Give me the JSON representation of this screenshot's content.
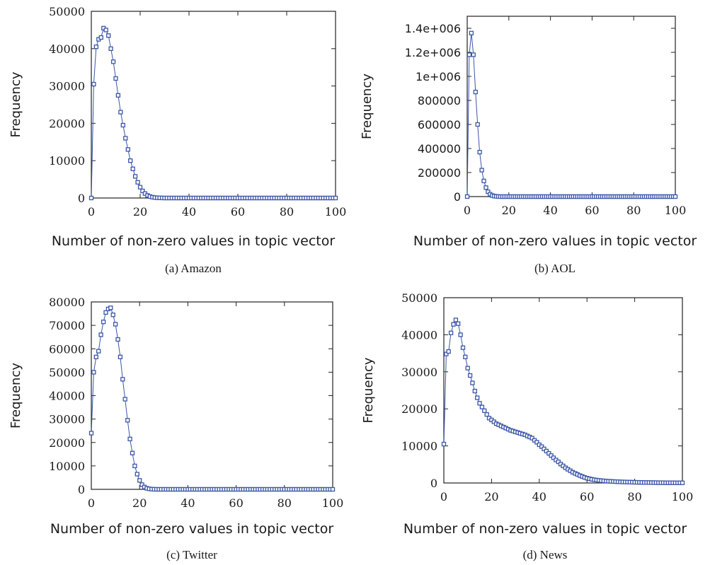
{
  "chart_data": [
    {
      "type": "scatter",
      "caption": "(a)  Amazon",
      "xlabel": "Number of non-zero values in topic vector",
      "ylabel": "Frequency",
      "xlim": [
        0,
        100
      ],
      "ylim": [
        0,
        50000
      ],
      "xticks": [
        "0",
        "20",
        "40",
        "60",
        "80",
        "100"
      ],
      "yticks": [
        "0",
        "10000",
        "20000",
        "30000",
        "40000",
        "50000"
      ],
      "x": [
        0,
        1,
        2,
        3,
        4,
        5,
        6,
        7,
        8,
        9,
        10,
        11,
        12,
        13,
        14,
        15,
        16,
        17,
        18,
        19,
        20,
        21,
        22,
        23,
        24,
        25,
        26,
        27,
        28,
        29,
        30,
        31,
        32,
        33,
        34,
        35,
        36,
        37,
        38,
        39,
        40,
        41,
        42,
        43,
        44,
        45,
        46,
        47,
        48,
        49,
        50,
        51,
        52,
        53,
        54,
        55,
        56,
        57,
        58,
        59,
        60,
        61,
        62,
        63,
        64,
        65,
        66,
        67,
        68,
        69,
        70,
        71,
        72,
        73,
        74,
        75,
        76,
        77,
        78,
        79,
        80,
        81,
        82,
        83,
        84,
        85,
        86,
        87,
        88,
        89,
        90,
        91,
        92,
        93,
        94,
        95,
        96,
        97,
        98,
        99,
        100
      ],
      "y": [
        0,
        30500,
        40500,
        42500,
        43000,
        45500,
        45000,
        43500,
        40000,
        36500,
        32000,
        27500,
        23000,
        19500,
        16000,
        13000,
        10000,
        7800,
        5800,
        4200,
        2900,
        1900,
        1200,
        700,
        400,
        220,
        120,
        60,
        30,
        15,
        8,
        4,
        2,
        1,
        0,
        0,
        0,
        0,
        0,
        0,
        0,
        0,
        0,
        0,
        0,
        0,
        0,
        0,
        0,
        0,
        0,
        0,
        0,
        0,
        0,
        0,
        0,
        0,
        0,
        0,
        0,
        0,
        0,
        0,
        0,
        0,
        0,
        0,
        0,
        0,
        0,
        0,
        0,
        0,
        0,
        0,
        0,
        0,
        0,
        0,
        0,
        0,
        0,
        0,
        0,
        0,
        0,
        0,
        0,
        0,
        0,
        0,
        0,
        0,
        0,
        0,
        0,
        0,
        0,
        0,
        0
      ]
    },
    {
      "type": "scatter",
      "caption": "(b)  AOL",
      "xlabel": "Number of non-zero values in topic vector",
      "ylabel": "Frequency",
      "xlim": [
        0,
        100
      ],
      "ylim": [
        0,
        1500000
      ],
      "xticks": [
        "0",
        "20",
        "40",
        "60",
        "80",
        "100"
      ],
      "yticks": [
        "0",
        "200000",
        "400000",
        "600000",
        "800000",
        "1e+006",
        "1.2e+006",
        "1.4e+006"
      ],
      "x": [
        0,
        1,
        2,
        3,
        4,
        5,
        6,
        7,
        8,
        9,
        10,
        11,
        12,
        13,
        14,
        15,
        16,
        17,
        18,
        19,
        20,
        21,
        22,
        23,
        24,
        25,
        26,
        27,
        28,
        29,
        30,
        31,
        32,
        33,
        34,
        35,
        36,
        37,
        38,
        39,
        40,
        41,
        42,
        43,
        44,
        45,
        46,
        47,
        48,
        49,
        50,
        51,
        52,
        53,
        54,
        55,
        56,
        57,
        58,
        59,
        60,
        61,
        62,
        63,
        64,
        65,
        66,
        67,
        68,
        69,
        70,
        71,
        72,
        73,
        74,
        75,
        76,
        77,
        78,
        79,
        80,
        81,
        82,
        83,
        84,
        85,
        86,
        87,
        88,
        89,
        90,
        91,
        92,
        93,
        94,
        95,
        96,
        97,
        98,
        99,
        100
      ],
      "y": [
        0,
        1180000,
        1360000,
        1180000,
        870000,
        600000,
        370000,
        220000,
        130000,
        75000,
        40000,
        20000,
        9000,
        4000,
        1500,
        600,
        200,
        80,
        30,
        10,
        5,
        0,
        0,
        0,
        0,
        0,
        0,
        0,
        0,
        0,
        0,
        0,
        0,
        0,
        0,
        0,
        0,
        0,
        0,
        0,
        0,
        0,
        0,
        0,
        0,
        0,
        0,
        0,
        0,
        0,
        0,
        0,
        0,
        0,
        0,
        0,
        0,
        0,
        0,
        0,
        0,
        0,
        0,
        0,
        0,
        0,
        0,
        0,
        0,
        0,
        0,
        0,
        0,
        0,
        0,
        0,
        0,
        0,
        0,
        0,
        0,
        0,
        0,
        0,
        0,
        0,
        0,
        0,
        0,
        0,
        0,
        0,
        0,
        0,
        0,
        0,
        0,
        0,
        0,
        0,
        0
      ]
    },
    {
      "type": "scatter",
      "caption": "(c)  Twitter",
      "xlabel": "Number of non-zero values in topic vector",
      "ylabel": "Frequency",
      "xlim": [
        0,
        100
      ],
      "ylim": [
        0,
        80000
      ],
      "xticks": [
        "0",
        "20",
        "40",
        "60",
        "80",
        "100"
      ],
      "yticks": [
        "0",
        "10000",
        "20000",
        "30000",
        "40000",
        "50000",
        "60000",
        "70000",
        "80000"
      ],
      "x": [
        0,
        1,
        2,
        3,
        4,
        5,
        6,
        7,
        8,
        9,
        10,
        11,
        12,
        13,
        14,
        15,
        16,
        17,
        18,
        19,
        20,
        21,
        22,
        23,
        24,
        25,
        26,
        27,
        28,
        29,
        30,
        31,
        32,
        33,
        34,
        35,
        36,
        37,
        38,
        39,
        40,
        41,
        42,
        43,
        44,
        45,
        46,
        47,
        48,
        49,
        50,
        51,
        52,
        53,
        54,
        55,
        56,
        57,
        58,
        59,
        60,
        61,
        62,
        63,
        64,
        65,
        66,
        67,
        68,
        69,
        70,
        71,
        72,
        73,
        74,
        75,
        76,
        77,
        78,
        79,
        80,
        81,
        82,
        83,
        84,
        85,
        86,
        87,
        88,
        89,
        90,
        91,
        92,
        93,
        94,
        95,
        96,
        97,
        98,
        99,
        100
      ],
      "y": [
        24000,
        50000,
        56500,
        59000,
        66000,
        71500,
        75500,
        77000,
        77500,
        74500,
        70500,
        64000,
        56500,
        47000,
        38500,
        29500,
        21500,
        15500,
        10000,
        6500,
        3800,
        2000,
        1000,
        450,
        200,
        80,
        30,
        10,
        5,
        2,
        1,
        0,
        0,
        0,
        0,
        0,
        0,
        0,
        0,
        0,
        0,
        0,
        0,
        0,
        0,
        0,
        0,
        0,
        0,
        0,
        0,
        0,
        0,
        0,
        0,
        0,
        0,
        0,
        0,
        0,
        0,
        0,
        0,
        0,
        0,
        0,
        0,
        0,
        0,
        0,
        0,
        0,
        0,
        0,
        0,
        0,
        0,
        0,
        0,
        0,
        0,
        0,
        0,
        0,
        0,
        0,
        0,
        0,
        0,
        0,
        0,
        0,
        0,
        0,
        0,
        0,
        0,
        0,
        0,
        0,
        0
      ]
    },
    {
      "type": "scatter",
      "caption": "(d)  News",
      "xlabel": "Number of non-zero values in topic vector",
      "ylabel": "Frequency",
      "xlim": [
        0,
        100
      ],
      "ylim": [
        0,
        50000
      ],
      "xticks": [
        "0",
        "20",
        "40",
        "60",
        "80",
        "100"
      ],
      "yticks": [
        "0",
        "10000",
        "20000",
        "30000",
        "40000",
        "50000"
      ],
      "x": [
        0,
        1,
        2,
        3,
        4,
        5,
        6,
        7,
        8,
        9,
        10,
        11,
        12,
        13,
        14,
        15,
        16,
        17,
        18,
        19,
        20,
        21,
        22,
        23,
        24,
        25,
        26,
        27,
        28,
        29,
        30,
        31,
        32,
        33,
        34,
        35,
        36,
        37,
        38,
        39,
        40,
        41,
        42,
        43,
        44,
        45,
        46,
        47,
        48,
        49,
        50,
        51,
        52,
        53,
        54,
        55,
        56,
        57,
        58,
        59,
        60,
        61,
        62,
        63,
        64,
        65,
        66,
        67,
        68,
        69,
        70,
        71,
        72,
        73,
        74,
        75,
        76,
        77,
        78,
        79,
        80,
        81,
        82,
        83,
        84,
        85,
        86,
        87,
        88,
        89,
        90,
        91,
        92,
        93,
        94,
        95,
        96,
        97,
        98,
        99,
        100
      ],
      "y": [
        10500,
        34800,
        35500,
        40500,
        42800,
        44000,
        43000,
        40000,
        36500,
        34000,
        31000,
        29000,
        27000,
        24800,
        23000,
        21500,
        20500,
        19500,
        18500,
        17500,
        17000,
        16500,
        16000,
        15700,
        15400,
        15100,
        14800,
        14500,
        14200,
        14000,
        13800,
        13600,
        13400,
        13200,
        13000,
        12700,
        12400,
        12100,
        11500,
        11000,
        10300,
        9800,
        9200,
        8600,
        8000,
        7400,
        6800,
        6200,
        5700,
        5100,
        4600,
        4100,
        3700,
        3300,
        2900,
        2600,
        2300,
        2000,
        1750,
        1500,
        1300,
        1150,
        1000,
        880,
        780,
        700,
        630,
        570,
        520,
        470,
        430,
        400,
        370,
        340,
        310,
        290,
        270,
        250,
        230,
        210,
        195,
        180,
        165,
        150,
        140,
        130,
        120,
        110,
        100,
        92,
        85,
        78,
        72,
        66,
        60,
        55,
        50,
        45,
        40,
        35,
        30
      ]
    }
  ]
}
